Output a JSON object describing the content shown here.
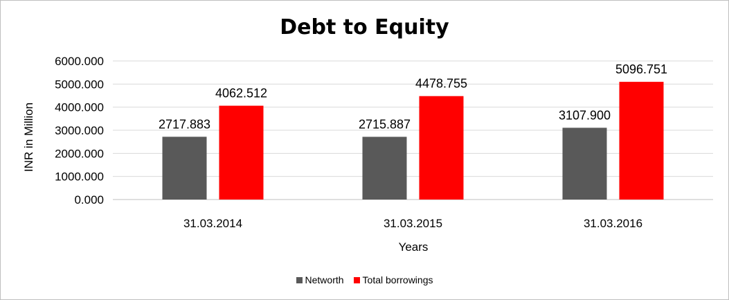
{
  "chart_data": {
    "type": "bar",
    "title": "Debt to Equity",
    "xlabel": "Years",
    "ylabel": "INR in Million",
    "categories": [
      "31.03.2014",
      "31.03.2015",
      "31.03.2016"
    ],
    "series": [
      {
        "name": "Networth",
        "color": "#595959",
        "values": [
          2717.883,
          2715.887,
          3107.9
        ]
      },
      {
        "name": "Total borrowings",
        "color": "#ff0000",
        "values": [
          4062.512,
          4478.755,
          5096.751
        ]
      }
    ],
    "ylim": [
      0,
      6000
    ],
    "yticks": [
      "0.000",
      "1000.000",
      "2000.000",
      "3000.000",
      "4000.000",
      "5000.000",
      "6000.000"
    ],
    "data_labels": [
      [
        "2717.883",
        "2715.887",
        "3107.900"
      ],
      [
        "4062.512",
        "4478.755",
        "5096.751"
      ]
    ],
    "grid": true,
    "legend_position": "bottom"
  }
}
